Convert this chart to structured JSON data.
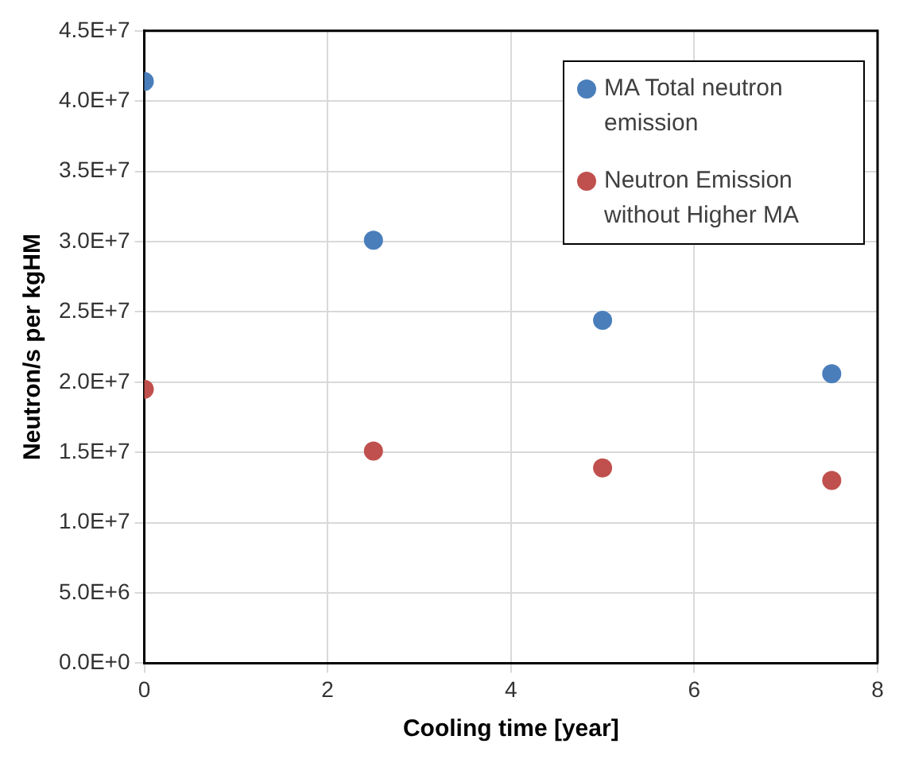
{
  "chart_data": {
    "type": "scatter",
    "xlabel": "Cooling time [year]",
    "ylabel": "Neutron/s per kgHM",
    "x": [
      0,
      2.5,
      5,
      7.5
    ],
    "series": [
      {
        "name": "MA Total neutron emission",
        "color": "#4a7ebb",
        "values": [
          41400000,
          30100000,
          24400000,
          20600000
        ]
      },
      {
        "name": "Neutron Emission without Higher MA",
        "color": "#c0504d",
        "values": [
          19500000,
          15100000,
          13900000,
          13000000
        ]
      }
    ],
    "xlim": [
      0,
      8
    ],
    "xticks": [
      0,
      2,
      4,
      6,
      8
    ],
    "ylim": [
      0,
      45000000
    ],
    "yticks": [
      {
        "value": 0,
        "label": "0.0E+0"
      },
      {
        "value": 5000000,
        "label": "5.0E+6"
      },
      {
        "value": 10000000,
        "label": "1.0E+7"
      },
      {
        "value": 15000000,
        "label": "1.5E+7"
      },
      {
        "value": 20000000,
        "label": "2.0E+7"
      },
      {
        "value": 25000000,
        "label": "2.5E+7"
      },
      {
        "value": 30000000,
        "label": "3.0E+7"
      },
      {
        "value": 35000000,
        "label": "3.5E+7"
      },
      {
        "value": 40000000,
        "label": "4.0E+7"
      },
      {
        "value": 45000000,
        "label": "4.5E+7"
      }
    ],
    "grid": true,
    "legend": "top right",
    "marker": "circle"
  }
}
